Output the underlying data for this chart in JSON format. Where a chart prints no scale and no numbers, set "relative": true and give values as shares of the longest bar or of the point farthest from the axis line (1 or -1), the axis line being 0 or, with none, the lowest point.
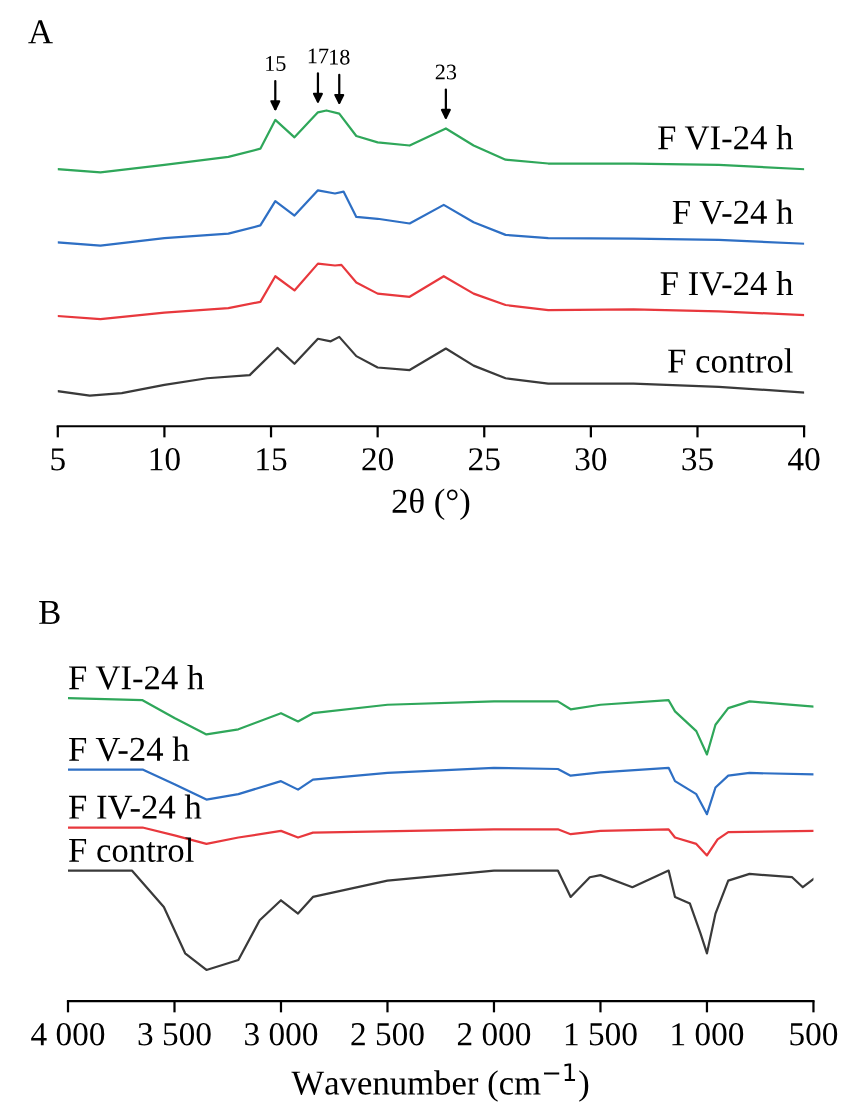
{
  "chart_data": [
    {
      "type": "line",
      "title": "A",
      "xlabel": "2θ (°)",
      "relative": true,
      "xlim": [
        5,
        40
      ],
      "xticks": [
        5,
        10,
        15,
        20,
        25,
        30,
        35,
        40
      ],
      "series": [
        {
          "name": "F control",
          "color": "#3a3a3a",
          "x": [
            5,
            6.5,
            8,
            10,
            12,
            14,
            15.3,
            16.1,
            17.2,
            17.8,
            18.2,
            19,
            20,
            21.5,
            23.2,
            24.5,
            26,
            28,
            32,
            36,
            40
          ],
          "values": [
            0.111,
            0.097,
            0.105,
            0.131,
            0.152,
            0.162,
            0.248,
            0.198,
            0.277,
            0.269,
            0.283,
            0.222,
            0.186,
            0.178,
            0.246,
            0.192,
            0.152,
            0.135,
            0.135,
            0.125,
            0.107
          ]
        },
        {
          "name": "F IV-24 h",
          "color": "#e8383d",
          "x": [
            5,
            7,
            10,
            13,
            14.5,
            15.2,
            16.1,
            17.2,
            18,
            18.3,
            19,
            20,
            21.5,
            23.1,
            24.5,
            26,
            28,
            32,
            36,
            40
          ],
          "values": [
            0.349,
            0.339,
            0.36,
            0.374,
            0.394,
            0.475,
            0.43,
            0.515,
            0.509,
            0.511,
            0.455,
            0.42,
            0.41,
            0.475,
            0.42,
            0.384,
            0.368,
            0.37,
            0.364,
            0.352
          ]
        },
        {
          "name": "F V-24 h",
          "color": "#2e6fc4",
          "x": [
            5,
            7,
            10,
            13,
            14.5,
            15.2,
            16.1,
            17.2,
            18,
            18.4,
            19,
            20,
            21.5,
            23.1,
            24.5,
            26,
            28,
            32,
            36,
            40
          ],
          "values": [
            0.582,
            0.572,
            0.596,
            0.61,
            0.636,
            0.713,
            0.667,
            0.747,
            0.737,
            0.743,
            0.663,
            0.657,
            0.642,
            0.701,
            0.646,
            0.606,
            0.596,
            0.594,
            0.59,
            0.578
          ]
        },
        {
          "name": "F VI-24 h",
          "color": "#2fa75a",
          "x": [
            5,
            7,
            10,
            13,
            14.5,
            15.2,
            16.1,
            17.2,
            17.6,
            18.2,
            19,
            20,
            21.5,
            23.2,
            24.5,
            26,
            28,
            32,
            36,
            40
          ],
          "values": [
            0.814,
            0.804,
            0.828,
            0.853,
            0.879,
            0.97,
            0.915,
            0.994,
            1.0,
            0.99,
            0.919,
            0.899,
            0.889,
            0.943,
            0.889,
            0.844,
            0.832,
            0.832,
            0.828,
            0.814
          ]
        }
      ],
      "annotations": [
        {
          "text": "15",
          "x": 15.2,
          "y": 0.97
        },
        {
          "text": "17",
          "x": 17.2,
          "y": 0.994
        },
        {
          "text": "18",
          "x": 18.2,
          "y": 0.99
        },
        {
          "text": "23",
          "x": 23.2,
          "y": 0.943
        }
      ]
    },
    {
      "type": "line",
      "title": "B",
      "xlabel": "Wavenumber (cm$^{−1}$)",
      "relative": true,
      "xlim": [
        4000,
        500
      ],
      "xticks": [
        {
          "value": 4000,
          "label": "4 000"
        },
        {
          "value": 3500,
          "label": "3 500"
        },
        {
          "value": 3000,
          "label": "3 000"
        },
        {
          "value": 2500,
          "label": "2 500"
        },
        {
          "value": 2000,
          "label": "2 000"
        },
        {
          "value": 1500,
          "label": "1 500"
        },
        {
          "value": 1000,
          "label": "1 000"
        },
        500
      ],
      "series": [
        {
          "name": "F control",
          "color": "#3a3a3a",
          "x": [
            4000,
            3700,
            3550,
            3450,
            3350,
            3200,
            3100,
            3000,
            2920,
            2850,
            2500,
            2000,
            1700,
            1640,
            1550,
            1500,
            1350,
            1180,
            1150,
            1080,
            1030,
            1000,
            960,
            900,
            800,
            600,
            550,
            500
          ],
          "values": [
            0.431,
            0.431,
            0.311,
            0.158,
            0.103,
            0.136,
            0.267,
            0.333,
            0.289,
            0.344,
            0.398,
            0.431,
            0.431,
            0.344,
            0.409,
            0.416,
            0.376,
            0.431,
            0.344,
            0.322,
            0.223,
            0.158,
            0.289,
            0.398,
            0.42,
            0.409,
            0.376,
            0.403
          ]
        },
        {
          "name": "F IV-24 h",
          "color": "#e8383d",
          "x": [
            4000,
            3650,
            3500,
            3350,
            3200,
            3000,
            2920,
            2850,
            2000,
            1700,
            1640,
            1500,
            1180,
            1150,
            1050,
            1000,
            950,
            900,
            500
          ],
          "values": [
            0.573,
            0.573,
            0.547,
            0.519,
            0.54,
            0.562,
            0.54,
            0.556,
            0.567,
            0.567,
            0.551,
            0.562,
            0.567,
            0.54,
            0.519,
            0.481,
            0.534,
            0.558,
            0.562
          ]
        },
        {
          "name": "F V-24 h",
          "color": "#2e6fc4",
          "x": [
            4000,
            3650,
            3500,
            3350,
            3200,
            3000,
            2920,
            2850,
            2500,
            2000,
            1700,
            1640,
            1500,
            1180,
            1150,
            1050,
            1000,
            960,
            900,
            800,
            500
          ],
          "values": [
            0.764,
            0.764,
            0.716,
            0.665,
            0.683,
            0.726,
            0.698,
            0.731,
            0.753,
            0.77,
            0.766,
            0.744,
            0.755,
            0.77,
            0.726,
            0.683,
            0.617,
            0.705,
            0.744,
            0.753,
            0.748
          ]
        },
        {
          "name": "F VI-24 h",
          "color": "#2fa75a",
          "x": [
            4000,
            3650,
            3500,
            3350,
            3200,
            3000,
            2920,
            2850,
            2500,
            2000,
            1700,
            1640,
            1500,
            1180,
            1150,
            1050,
            1000,
            960,
            900,
            800,
            500
          ],
          "values": [
            1.0,
            0.993,
            0.934,
            0.88,
            0.897,
            0.95,
            0.923,
            0.95,
            0.978,
            0.989,
            0.989,
            0.963,
            0.978,
            0.993,
            0.956,
            0.891,
            0.814,
            0.912,
            0.967,
            0.989,
            0.972
          ]
        }
      ]
    }
  ]
}
